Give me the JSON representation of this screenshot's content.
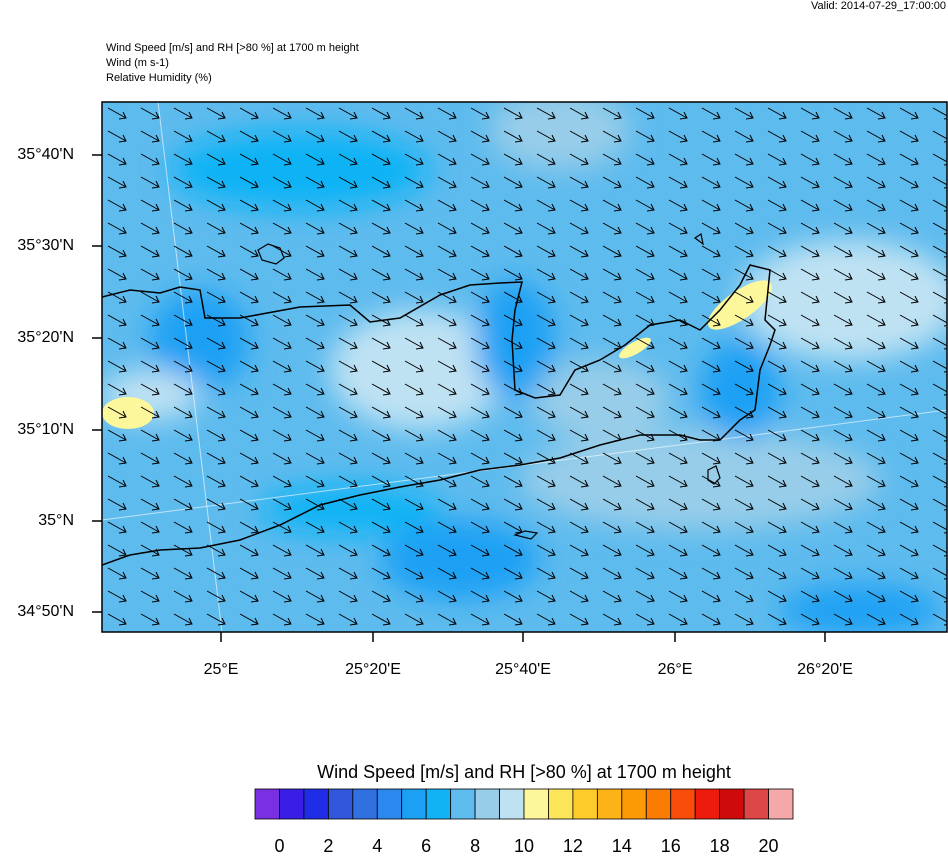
{
  "valid": "Valid: 2014-07-29_17:00:00",
  "header": [
    "Wind Speed [m/s] and RH [>80 %] at 1700 m height",
    "Wind   (m s-1)",
    "Relative Humidity   (%)"
  ],
  "map": {
    "lat_labels": [
      "35°40'N",
      "35°30'N",
      "35°20'N",
      "35°10'N",
      "35°N",
      "34°50'N"
    ],
    "lon_labels": [
      "25°E",
      "25°20'E",
      "25°40'E",
      "26°E",
      "26°20'E"
    ]
  },
  "colorbar": {
    "title": "Wind Speed [m/s] and RH [>80 %] at 1700 m height",
    "colors": [
      "#7b2fe3",
      "#3a1ee8",
      "#1f2ee6",
      "#3357dc",
      "#3070e0",
      "#2b88ef",
      "#1ca0f4",
      "#11b3f5",
      "#5ebbee",
      "#98cde9",
      "#bfe2f3",
      "#fdf79b",
      "#fde55a",
      "#fdcc2a",
      "#fcb317",
      "#fc9a05",
      "#fb7c02",
      "#f84d0a",
      "#ed1a0e",
      "#cf0a0a",
      "#dd4646",
      "#f5a8a8"
    ],
    "labels": [
      "0",
      "2",
      "4",
      "6",
      "8",
      "10",
      "12",
      "14",
      "16",
      "18",
      "20"
    ]
  }
}
